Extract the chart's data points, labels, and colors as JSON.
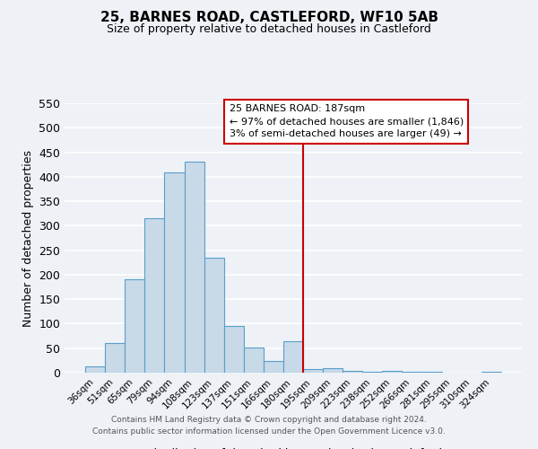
{
  "title": "25, BARNES ROAD, CASTLEFORD, WF10 5AB",
  "subtitle": "Size of property relative to detached houses in Castleford",
  "xlabel": "Distribution of detached houses by size in Castleford",
  "ylabel": "Number of detached properties",
  "categories": [
    "36sqm",
    "51sqm",
    "65sqm",
    "79sqm",
    "94sqm",
    "108sqm",
    "123sqm",
    "137sqm",
    "151sqm",
    "166sqm",
    "180sqm",
    "195sqm",
    "209sqm",
    "223sqm",
    "238sqm",
    "252sqm",
    "266sqm",
    "281sqm",
    "295sqm",
    "310sqm",
    "324sqm"
  ],
  "values": [
    12,
    60,
    190,
    315,
    408,
    430,
    235,
    95,
    52,
    24,
    65,
    8,
    10,
    4,
    2,
    3,
    1,
    1,
    0,
    0,
    2
  ],
  "bar_color": "#c8d9e8",
  "bar_edge_color": "#5a9ec9",
  "ylim": [
    0,
    550
  ],
  "yticks": [
    0,
    50,
    100,
    150,
    200,
    250,
    300,
    350,
    400,
    450,
    500,
    550
  ],
  "annotation_title": "25 BARNES ROAD: 187sqm",
  "annotation_line1": "← 97% of detached houses are smaller (1,846)",
  "annotation_line2": "3% of semi-detached houses are larger (49) →",
  "annotation_box_color": "#ffffff",
  "annotation_border_color": "#cc0000",
  "vline_color": "#cc0000",
  "vline_x": 10.5,
  "footer1": "Contains HM Land Registry data © Crown copyright and database right 2024.",
  "footer2": "Contains public sector information licensed under the Open Government Licence v3.0.",
  "background_color": "#eef2f7",
  "grid_color": "#ffffff"
}
